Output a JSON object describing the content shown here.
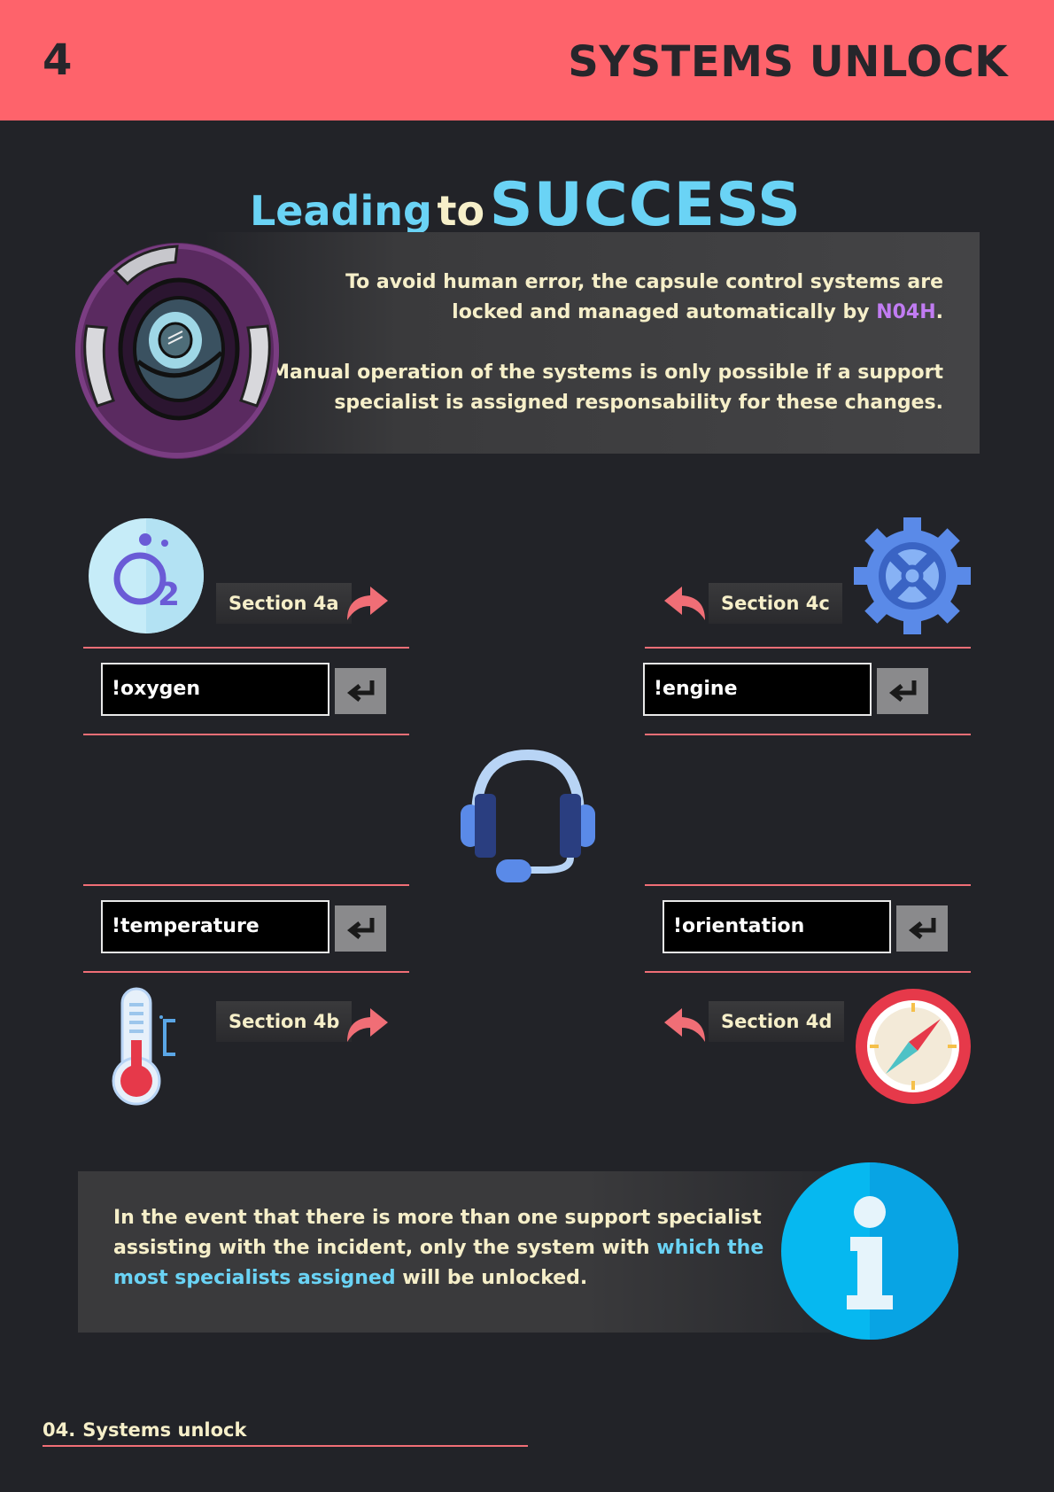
{
  "header": {
    "page_number": "4",
    "title": "SYSTEMS UNLOCK"
  },
  "heading": {
    "word1": "Leading",
    "word2": "to",
    "word3": "SUCCESS"
  },
  "intro": {
    "p1_before": "To avoid human error, the capsule control systems are locked and managed automatically by ",
    "p1_highlight": "N04H",
    "p1_after": ".",
    "p2": "Manual operation of the systems is only possible if a support specialist is assigned responsability for these changes."
  },
  "sections": {
    "oxygen": {
      "label": "Section 4a",
      "command": "!oxygen"
    },
    "temperature": {
      "label": "Section 4b",
      "command": "!temperature"
    },
    "engine": {
      "label": "Section 4c",
      "command": "!engine"
    },
    "orientation": {
      "label": "Section 4d",
      "command": "!orientation"
    }
  },
  "info": {
    "before": "In the event that there is more than one support specialist assisting with the incident, only the system with ",
    "highlight": "which the most specialists assigned",
    "after": " will be unlocked."
  },
  "footer": {
    "number": "04.",
    "label": "Systems unlock"
  },
  "colors": {
    "header_bg": "#fe636b",
    "page_bg": "#222328",
    "accent_blue": "#6ad3f5",
    "accent_purple": "#c17cf2",
    "text_cream": "#f6efc9",
    "line_red": "#f06e76"
  },
  "icons": [
    "robot-eye-icon",
    "oxygen-icon",
    "gear-icon",
    "headset-icon",
    "thermometer-icon",
    "compass-icon",
    "info-icon",
    "curved-arrow-icon",
    "enter-key-icon"
  ]
}
